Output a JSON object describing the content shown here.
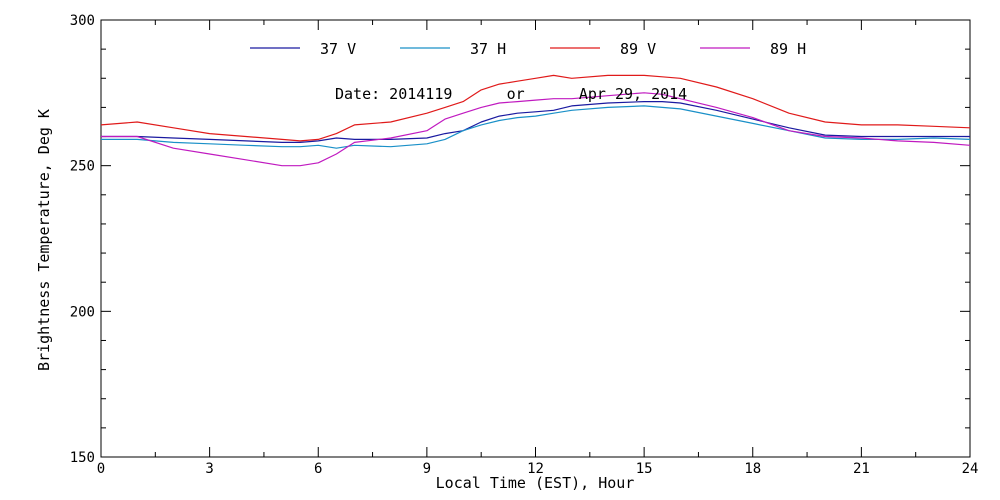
{
  "chart_data": {
    "type": "line",
    "title": "",
    "annotation": "Date: 2014119      or      Apr 29, 2014",
    "xlabel": "Local Time (EST), Hour",
    "ylabel": "Brightness Temperature, Deg K",
    "xlim": [
      0,
      24
    ],
    "ylim": [
      150,
      300
    ],
    "xticks": [
      0,
      3,
      6,
      9,
      12,
      15,
      18,
      21,
      24
    ],
    "yticks": [
      150,
      200,
      250,
      300
    ],
    "grid": false,
    "legend_position": "top",
    "series": [
      {
        "name": "37 V",
        "color": "#1a1aa0",
        "x": [
          0,
          1,
          2,
          3,
          4,
          5,
          5.5,
          6,
          6.5,
          7,
          8,
          9,
          9.5,
          10,
          10.5,
          11,
          11.5,
          12,
          12.5,
          13,
          14,
          15,
          15.5,
          16,
          17,
          18,
          19,
          20,
          21,
          22,
          23,
          24
        ],
        "y": [
          260,
          260,
          259.5,
          259,
          258.5,
          258,
          258,
          258.5,
          259.5,
          259,
          259,
          259.5,
          261,
          262,
          265,
          267,
          268,
          268.5,
          269,
          270.5,
          271.5,
          272,
          272,
          271.5,
          269,
          266,
          263,
          260.5,
          260,
          260,
          260,
          260
        ]
      },
      {
        "name": "37 H",
        "color": "#1a90c8",
        "x": [
          0,
          1,
          2,
          3,
          4,
          5,
          5.5,
          6,
          6.5,
          7,
          8,
          9,
          9.5,
          10,
          10.5,
          11,
          11.5,
          12,
          12.5,
          13,
          14,
          15,
          15.5,
          16,
          17,
          18,
          19,
          20,
          21,
          22,
          23,
          24
        ],
        "y": [
          259,
          259,
          258,
          257.5,
          257,
          256.5,
          256.5,
          257,
          256,
          257,
          256.5,
          257.5,
          259,
          262,
          264,
          265.5,
          266.5,
          267,
          268,
          269,
          270,
          270.5,
          270,
          269.5,
          267,
          264.5,
          262,
          259.5,
          259,
          259,
          259.5,
          259
        ]
      },
      {
        "name": "89 V",
        "color": "#e01a1a",
        "x": [
          0,
          1,
          2,
          3,
          4,
          5,
          5.5,
          6,
          6.5,
          7,
          8,
          9,
          9.5,
          10,
          10.5,
          11,
          11.5,
          12,
          12.5,
          13,
          14,
          15,
          15.5,
          16,
          17,
          18,
          19,
          20,
          21,
          22,
          23,
          24
        ],
        "y": [
          264,
          265,
          263,
          261,
          260,
          259,
          258.5,
          259,
          261,
          264,
          265,
          268,
          270,
          272,
          276,
          278,
          279,
          280,
          281,
          280,
          281,
          281,
          280.5,
          280,
          277,
          273,
          268,
          265,
          264,
          264,
          263.5,
          263
        ]
      },
      {
        "name": "89 H",
        "color": "#c01ac0",
        "x": [
          0,
          1,
          2,
          3,
          4,
          5,
          5.5,
          6,
          6.5,
          7,
          8,
          9,
          9.5,
          10,
          10.5,
          11,
          11.5,
          12,
          12.5,
          13,
          14,
          15,
          15.5,
          16,
          17,
          18,
          19,
          20,
          21,
          22,
          23,
          24
        ],
        "y": [
          260,
          260,
          256,
          254,
          252,
          250,
          250,
          251,
          254,
          258,
          259.5,
          262,
          266,
          268,
          270,
          271.5,
          272,
          272.5,
          273,
          273,
          274,
          275,
          274.5,
          273,
          270,
          266.5,
          262,
          260,
          259.5,
          258.5,
          258,
          257
        ]
      }
    ]
  }
}
